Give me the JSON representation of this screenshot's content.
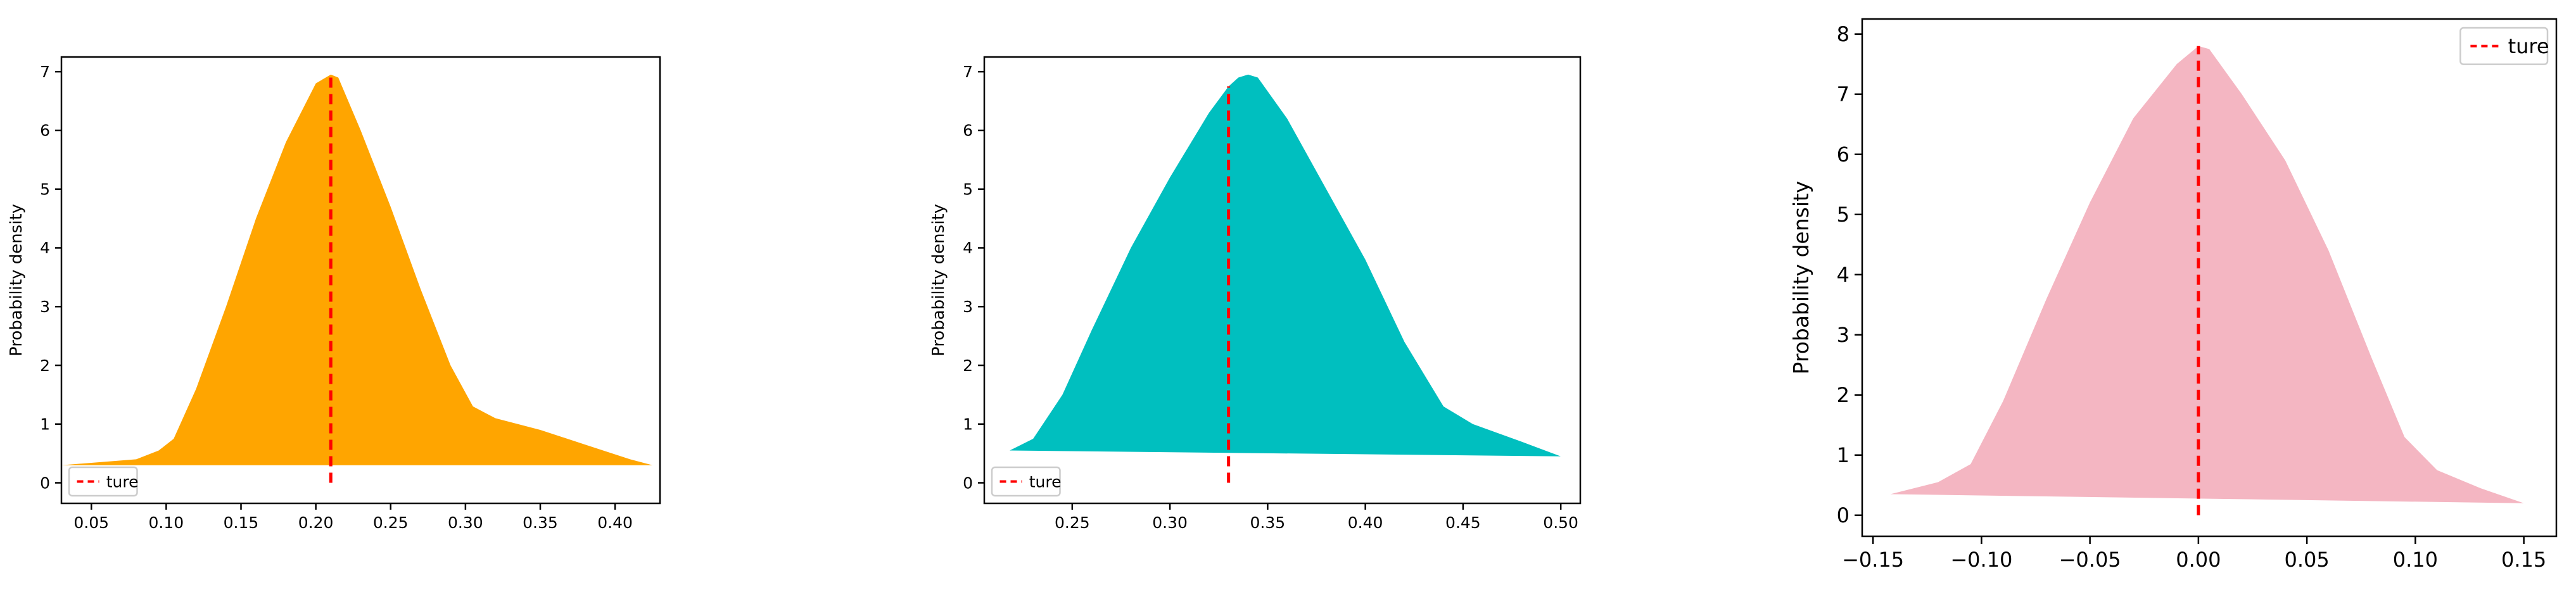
{
  "chart_data": [
    {
      "type": "area",
      "ylabel": "Probability density",
      "xlim": [
        0.03,
        0.43
      ],
      "ylim": [
        -0.35,
        7.25
      ],
      "xticks": [
        0.05,
        0.1,
        0.15,
        0.2,
        0.25,
        0.3,
        0.35,
        0.4
      ],
      "xtick_labels": [
        "0.05",
        "0.10",
        "0.15",
        "0.20",
        "0.25",
        "0.30",
        "0.35",
        "0.40"
      ],
      "yticks": [
        0,
        1,
        2,
        3,
        4,
        5,
        6,
        7
      ],
      "ytick_labels": [
        "0",
        "1",
        "2",
        "3",
        "4",
        "5",
        "6",
        "7"
      ],
      "fill_color": "#ffa500",
      "density": {
        "x": [
          0.03,
          0.08,
          0.095,
          0.105,
          0.12,
          0.14,
          0.16,
          0.18,
          0.2,
          0.21,
          0.215,
          0.23,
          0.25,
          0.27,
          0.29,
          0.305,
          0.32,
          0.35,
          0.38,
          0.41,
          0.425
        ],
        "y": [
          0.3,
          0.4,
          0.55,
          0.75,
          1.6,
          3.0,
          4.5,
          5.8,
          6.8,
          6.95,
          6.9,
          6.0,
          4.7,
          3.3,
          2.0,
          1.3,
          1.1,
          0.9,
          0.65,
          0.4,
          0.3
        ]
      },
      "baseline": {
        "x": [
          0.03,
          0.425
        ],
        "y": [
          0.3,
          0.3
        ]
      },
      "true_value": 0.21,
      "true_line_y": [
        0,
        6.95
      ],
      "legend": {
        "label": "ture",
        "color": "#ff0000",
        "position": "lower left"
      }
    },
    {
      "type": "area",
      "ylabel": "Probability density",
      "xlim": [
        0.205,
        0.51
      ],
      "ylim": [
        -0.35,
        7.25
      ],
      "xticks": [
        0.25,
        0.3,
        0.35,
        0.4,
        0.45,
        0.5
      ],
      "xtick_labels": [
        "0.25",
        "0.30",
        "0.35",
        "0.40",
        "0.45",
        "0.50"
      ],
      "yticks": [
        0,
        1,
        2,
        3,
        4,
        5,
        6,
        7
      ],
      "ytick_labels": [
        "0",
        "1",
        "2",
        "3",
        "4",
        "5",
        "6",
        "7"
      ],
      "fill_color": "#00bfbf",
      "density": {
        "x": [
          0.218,
          0.23,
          0.245,
          0.26,
          0.28,
          0.3,
          0.32,
          0.33,
          0.335,
          0.34,
          0.345,
          0.36,
          0.38,
          0.4,
          0.42,
          0.44,
          0.455,
          0.48,
          0.5
        ],
        "y": [
          0.55,
          0.75,
          1.5,
          2.6,
          4.0,
          5.2,
          6.3,
          6.75,
          6.9,
          6.95,
          6.9,
          6.2,
          5.0,
          3.8,
          2.4,
          1.3,
          1.0,
          0.7,
          0.45
        ]
      },
      "baseline": {
        "x": [
          0.218,
          0.5
        ],
        "y": [
          0.55,
          0.45
        ]
      },
      "true_value": 0.33,
      "true_line_y": [
        0,
        6.75
      ],
      "legend": {
        "label": "ture",
        "color": "#ff0000",
        "position": "lower left"
      }
    },
    {
      "type": "area",
      "ylabel": "Probability density",
      "xlim": [
        -0.155,
        0.165
      ],
      "ylim": [
        -0.35,
        8.25
      ],
      "xticks": [
        -0.15,
        -0.1,
        -0.05,
        0.0,
        0.05,
        0.1,
        0.15
      ],
      "xtick_labels": [
        "−0.15",
        "−0.10",
        "−0.05",
        "0.00",
        "0.05",
        "0.10",
        "0.15"
      ],
      "yticks": [
        0,
        1,
        2,
        3,
        4,
        5,
        6,
        7,
        8
      ],
      "ytick_labels": [
        "0",
        "1",
        "2",
        "3",
        "4",
        "5",
        "6",
        "7",
        "8"
      ],
      "fill_color": "#f4b6c2",
      "density": {
        "x": [
          -0.142,
          -0.12,
          -0.105,
          -0.09,
          -0.07,
          -0.05,
          -0.03,
          -0.01,
          0.0,
          0.005,
          0.02,
          0.04,
          0.06,
          0.08,
          0.095,
          0.11,
          0.13,
          0.15
        ],
        "y": [
          0.35,
          0.55,
          0.85,
          1.9,
          3.6,
          5.2,
          6.6,
          7.5,
          7.8,
          7.75,
          7.0,
          5.9,
          4.4,
          2.6,
          1.3,
          0.75,
          0.45,
          0.2
        ]
      },
      "baseline": {
        "x": [
          -0.142,
          0.15
        ],
        "y": [
          0.35,
          0.2
        ]
      },
      "true_value": 0.0,
      "true_line_y": [
        0,
        7.8
      ],
      "legend": {
        "label": "ture",
        "color": "#ff0000",
        "position": "upper right"
      }
    }
  ]
}
